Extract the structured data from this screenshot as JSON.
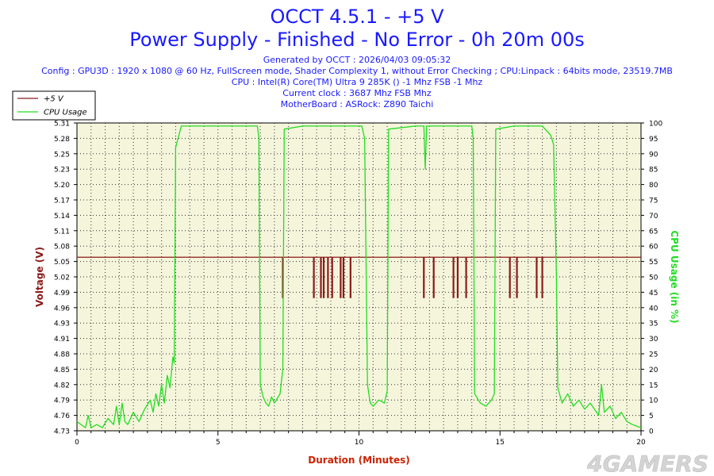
{
  "header": {
    "title_line1": "OCCT 4.5.1 - +5 V",
    "title_line2": "Power Supply - Finished - No Error - 0h 20m 00s",
    "info_lines": [
      "Generated by OCCT : 2026/04/03 09:05:32",
      "Config : GPU3D : 1920 x 1080 @ 60 Hz, FullScreen mode, Shader Complexity 1, without Error Checking ; CPU:Linpack : 64bits mode, 23519.7MB",
      "CPU : Intel(R) Core(TM) Ultra 9 285K () -1 Mhz FSB -1 Mhz",
      "Current clock : 3687 Mhz FSB  Mhz",
      "MotherBoard : ASRock: Z890 Taichi"
    ]
  },
  "watermark": "4GAMERS",
  "colors": {
    "title": "#1a1aff",
    "voltage": "#8b1a1a",
    "cpu": "#22dd22",
    "plot_bg": "#f5f5dc",
    "axis_label": "#cc2200"
  },
  "chart_data": {
    "type": "line",
    "xlabel": "Duration (Minutes)",
    "ylabel_left": "Voltage (V)",
    "ylabel_right": "CPU Usage (in %)",
    "xlim": [
      0,
      20
    ],
    "x_ticks": [
      0,
      5,
      10,
      15,
      20
    ],
    "ylim_left": [
      4.73,
      5.31
    ],
    "y_ticks_left": [
      "4.73",
      "4.76",
      "4.79",
      "4.82",
      "4.85",
      "4.88",
      "4.91",
      "4.93",
      "4.96",
      "4.99",
      "5.02",
      "5.05",
      "5.08",
      "5.11",
      "5.14",
      "5.17",
      "5.20",
      "5.23",
      "5.25",
      "5.28",
      "5.31"
    ],
    "ylim_right": [
      0,
      100
    ],
    "y_ticks_right": [
      0,
      5,
      10,
      15,
      20,
      25,
      30,
      35,
      40,
      45,
      50,
      55,
      60,
      65,
      70,
      75,
      80,
      85,
      90,
      95,
      100
    ],
    "grid": true,
    "legend": [
      "+5 V",
      "CPU Usage"
    ],
    "legend_position": "top-left",
    "series": [
      {
        "name": "+5 V",
        "baseline": 5.057,
        "dips": [
          {
            "x": 7.3,
            "min": 4.98
          },
          {
            "x": 8.4,
            "min": 4.98
          },
          {
            "x": 8.65,
            "min": 4.98
          },
          {
            "x": 8.75,
            "min": 4.98
          },
          {
            "x": 8.9,
            "min": 4.98
          },
          {
            "x": 9.05,
            "min": 4.98
          },
          {
            "x": 9.35,
            "min": 4.98
          },
          {
            "x": 9.45,
            "min": 4.98
          },
          {
            "x": 9.7,
            "min": 4.98
          },
          {
            "x": 12.3,
            "min": 4.98
          },
          {
            "x": 12.65,
            "min": 4.98
          },
          {
            "x": 13.35,
            "min": 4.98
          },
          {
            "x": 13.5,
            "min": 4.98
          },
          {
            "x": 13.8,
            "min": 4.98
          },
          {
            "x": 15.35,
            "min": 4.98
          },
          {
            "x": 15.6,
            "min": 4.98
          },
          {
            "x": 16.3,
            "min": 4.98
          },
          {
            "x": 16.5,
            "min": 4.98
          }
        ]
      },
      {
        "name": "CPU Usage",
        "points": [
          [
            0,
            3
          ],
          [
            0.3,
            1
          ],
          [
            0.4,
            5
          ],
          [
            0.5,
            1
          ],
          [
            0.7,
            2
          ],
          [
            0.9,
            1
          ],
          [
            1.1,
            4
          ],
          [
            1.3,
            2
          ],
          [
            1.4,
            8
          ],
          [
            1.5,
            2
          ],
          [
            1.6,
            9
          ],
          [
            1.7,
            3
          ],
          [
            1.8,
            2
          ],
          [
            2.0,
            6
          ],
          [
            2.2,
            3
          ],
          [
            2.4,
            7
          ],
          [
            2.6,
            10
          ],
          [
            2.7,
            6
          ],
          [
            2.8,
            12
          ],
          [
            2.9,
            8
          ],
          [
            3.0,
            15
          ],
          [
            3.1,
            9
          ],
          [
            3.2,
            18
          ],
          [
            3.3,
            14
          ],
          [
            3.4,
            24
          ],
          [
            3.45,
            22
          ],
          [
            3.5,
            92
          ],
          [
            3.7,
            99
          ],
          [
            4.5,
            99
          ],
          [
            5.5,
            99
          ],
          [
            6.4,
            99
          ],
          [
            6.45,
            95
          ],
          [
            6.5,
            15
          ],
          [
            6.6,
            11
          ],
          [
            6.7,
            9
          ],
          [
            6.8,
            8
          ],
          [
            6.9,
            11
          ],
          [
            7.0,
            9
          ],
          [
            7.2,
            12
          ],
          [
            7.3,
            20
          ],
          [
            7.35,
            98
          ],
          [
            8.0,
            99
          ],
          [
            9.0,
            99
          ],
          [
            10.1,
            99
          ],
          [
            10.2,
            95
          ],
          [
            10.3,
            15
          ],
          [
            10.4,
            9
          ],
          [
            10.5,
            8
          ],
          [
            10.7,
            10
          ],
          [
            10.9,
            9
          ],
          [
            11.0,
            13
          ],
          [
            11.05,
            98
          ],
          [
            12.0,
            99
          ],
          [
            12.3,
            99
          ],
          [
            12.35,
            85
          ],
          [
            12.4,
            99
          ],
          [
            13.5,
            99
          ],
          [
            14.0,
            99
          ],
          [
            14.05,
            95
          ],
          [
            14.1,
            12
          ],
          [
            14.3,
            9
          ],
          [
            14.5,
            8
          ],
          [
            14.7,
            10
          ],
          [
            14.8,
            12
          ],
          [
            14.85,
            98
          ],
          [
            15.5,
            99
          ],
          [
            16.5,
            99
          ],
          [
            16.8,
            96
          ],
          [
            16.9,
            93
          ],
          [
            17.0,
            50
          ],
          [
            17.05,
            14
          ],
          [
            17.2,
            9
          ],
          [
            17.4,
            12
          ],
          [
            17.6,
            8
          ],
          [
            17.8,
            10
          ],
          [
            18.0,
            7
          ],
          [
            18.2,
            9
          ],
          [
            18.5,
            5
          ],
          [
            18.6,
            15
          ],
          [
            18.7,
            6
          ],
          [
            18.9,
            8
          ],
          [
            19.1,
            4
          ],
          [
            19.3,
            6
          ],
          [
            19.5,
            3
          ],
          [
            19.7,
            2
          ],
          [
            20,
            1
          ]
        ]
      }
    ]
  }
}
